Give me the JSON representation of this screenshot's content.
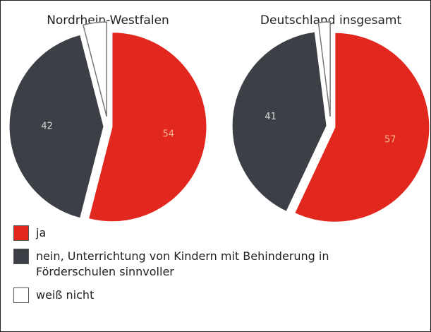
{
  "chart_data": [
    {
      "type": "pie",
      "title": "Nordrhein-Westfalen",
      "categories": [
        "ja",
        "nein, Unterrichtung von Kindern mit Behinderung in Förderschulen sinnvoller",
        "weiß nicht"
      ],
      "values": [
        54,
        42,
        4
      ],
      "value_labels": [
        "54",
        "42",
        null
      ],
      "colors": [
        "#e2271e",
        "#3c4046",
        "#ffffff"
      ]
    },
    {
      "type": "pie",
      "title": "Deutschland insgesamt",
      "values": [
        57,
        41,
        2
      ],
      "value_labels": [
        "57",
        "41",
        null
      ]
    }
  ]
}
